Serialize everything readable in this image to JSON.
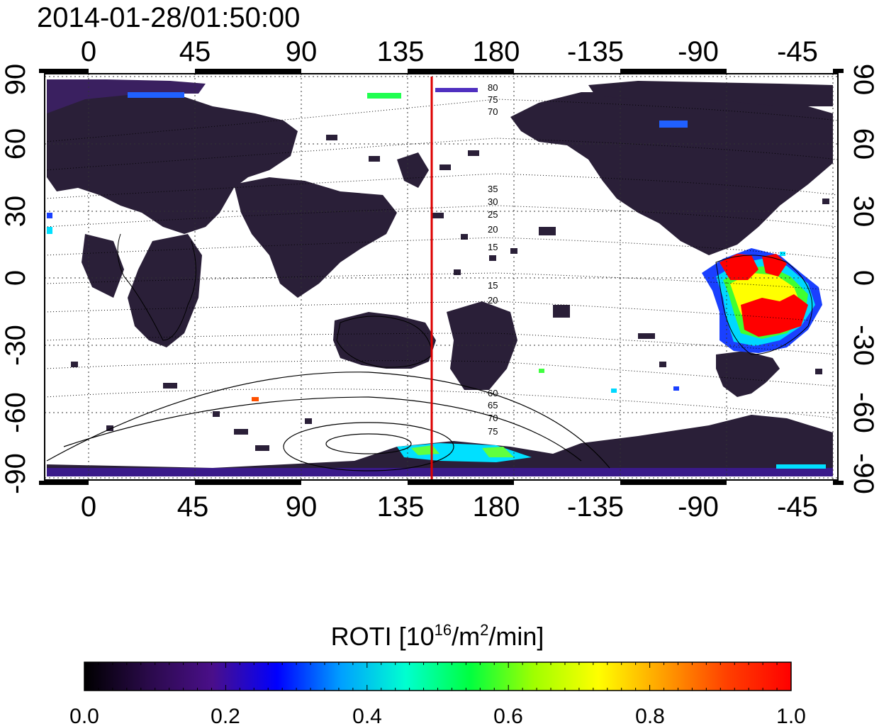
{
  "title": "2014-01-28/01:50:00",
  "lon_ticks": [
    "0",
    "45",
    "90",
    "135",
    "180",
    "-135",
    "-90",
    "-45"
  ],
  "lat_ticks": [
    "90",
    "60",
    "30",
    "0",
    "-30",
    "-60",
    "-90"
  ],
  "contour_labels_north": [
    "80",
    "75",
    "70",
    "35",
    "30",
    "25",
    "20",
    "15"
  ],
  "contour_labels_south": [
    "15",
    "20",
    "60",
    "65",
    "70",
    "75"
  ],
  "colorbar": {
    "title_main": "ROTI  [10",
    "title_sup1": "16",
    "title_mid": "/m",
    "title_sup2": "2",
    "title_end": "/min]",
    "tick_labels": [
      "0.0",
      "0.2",
      "0.4",
      "0.6",
      "0.8",
      "1.0"
    ],
    "min": 0.0,
    "max": 1.0,
    "colors": [
      "#000000",
      "#2a0a4a",
      "#4a0f8a",
      "#0000ff",
      "#00a0ff",
      "#00ffd0",
      "#00ff40",
      "#a0ff00",
      "#ffff00",
      "#ffa000",
      "#ff4000",
      "#ff0000"
    ]
  },
  "marker_line": {
    "longitude": 152,
    "color": "#dd0000"
  },
  "colors": {
    "background_activity": "#2a1f3a",
    "low_activity": "#3a1a6a",
    "high_activity": "#ff0000"
  }
}
